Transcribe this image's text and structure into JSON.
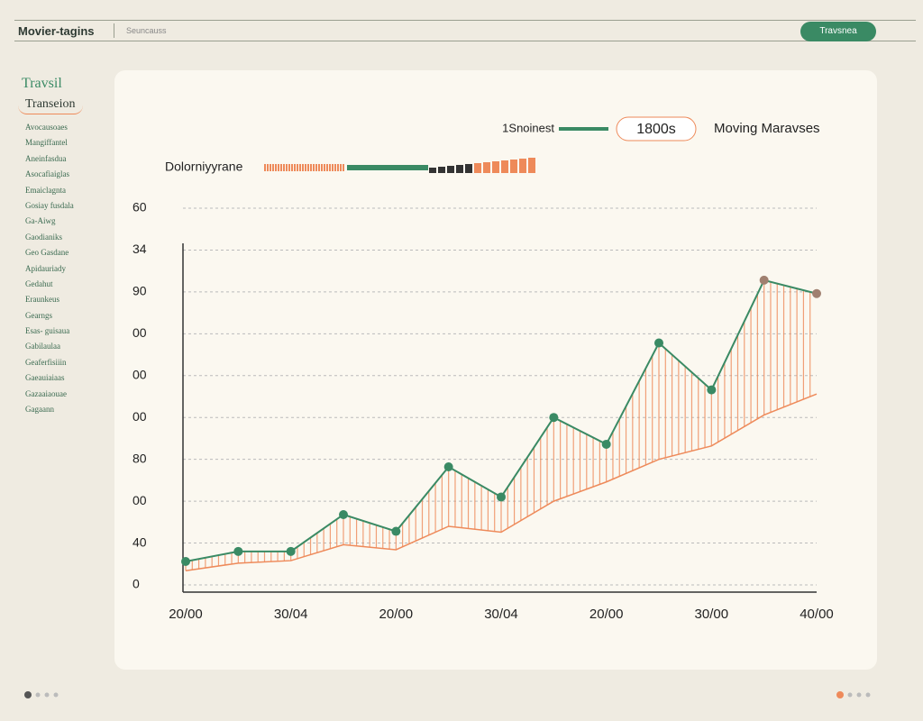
{
  "header": {
    "title": "Movier-tagins",
    "subtitle": "Seuncauss",
    "button": "Travsnea"
  },
  "sidebar": {
    "heading": "Travsil",
    "active": "Transeion",
    "items": [
      "Avocausoaes",
      "Mangiffantel",
      "Aneinfasdua",
      "Asocafiaiglas",
      "Emaiclagnta",
      "Gosiay fusdala",
      "Ga-Aiwg",
      "Gaodianiks",
      "Geo Gasdane",
      "Apidauriady",
      "Gedahut",
      "Eraunkeus",
      "Gearngs",
      "Esas- guisaua",
      "Gabilaulaa",
      "Geaferfisiiin",
      "Gaeauiaiaas",
      "Gazaaiaouae",
      "Gagaann"
    ]
  },
  "chart_data": {
    "type": "line",
    "annotation": "1800s",
    "subtitle": "Moving Maravses",
    "categories": [
      "20/00",
      null,
      "30/04",
      null,
      "20/00",
      null,
      "30/04",
      null,
      "20/00",
      null,
      "30/00",
      null,
      "40/00"
    ],
    "series": [
      {
        "name": "1Snoinest",
        "color": "#3a8a64",
        "values": [
          28,
          40,
          40,
          84,
          64,
          141,
          105,
          200,
          168,
          289,
          233,
          364,
          348
        ]
      },
      {
        "name": "Dolorniyyrane",
        "color": "#ee8a5a",
        "values": [
          17,
          26,
          29,
          48,
          42,
          70,
          63,
          100,
          123,
          150,
          166,
          203,
          228
        ]
      }
    ],
    "ylim": [
      0,
      450
    ],
    "yticks": [
      0,
      {
        "value": 50,
        "label": "40"
      },
      {
        "value": 100,
        "label": "00"
      },
      {
        "value": 150,
        "label": "80"
      },
      {
        "value": 200,
        "label": "00"
      },
      {
        "value": 250,
        "label": "00"
      },
      {
        "value": 300,
        "label": "00"
      },
      {
        "value": 350,
        "label": "90"
      },
      {
        "value": 400,
        "label": "34"
      },
      {
        "value": 450,
        "label": "60"
      }
    ],
    "grid": true
  }
}
